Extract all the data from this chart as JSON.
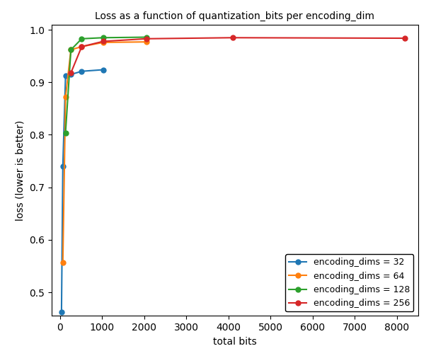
{
  "title": "Loss as a function of quantization_bits per encoding_dim",
  "xlabel": "total bits",
  "ylabel": "loss (lower is better)",
  "series": [
    {
      "label": "encoding_dims = 32",
      "color": "#1f77b4",
      "x": [
        32,
        64,
        128,
        256,
        512,
        1024
      ],
      "y": [
        0.462,
        0.74,
        0.912,
        0.915,
        0.921,
        0.924
      ]
    },
    {
      "label": "encoding_dims = 64",
      "color": "#ff7f0e",
      "x": [
        64,
        128,
        256,
        512,
        1024,
        2048
      ],
      "y": [
        0.556,
        0.872,
        0.962,
        0.968,
        0.976,
        0.977
      ]
    },
    {
      "label": "encoding_dims = 128",
      "color": "#2ca02c",
      "x": [
        128,
        256,
        512,
        1024,
        2048
      ],
      "y": [
        0.804,
        0.962,
        0.983,
        0.985,
        0.986
      ]
    },
    {
      "label": "encoding_dims = 256",
      "color": "#d62728",
      "x": [
        256,
        512,
        1024,
        2048,
        4096,
        8192
      ],
      "y": [
        0.918,
        0.968,
        0.978,
        0.983,
        0.985,
        0.984
      ]
    }
  ],
  "xlim": [
    -200,
    8500
  ],
  "ylim": [
    0.455,
    1.01
  ],
  "xticks": [
    0,
    1000,
    2000,
    3000,
    4000,
    5000,
    6000,
    7000,
    8000
  ],
  "yticks": [
    0.5,
    0.6,
    0.7,
    0.8,
    0.9,
    1.0
  ],
  "legend_loc": "lower right",
  "figsize": [
    6.09,
    4.96
  ],
  "dpi": 100
}
